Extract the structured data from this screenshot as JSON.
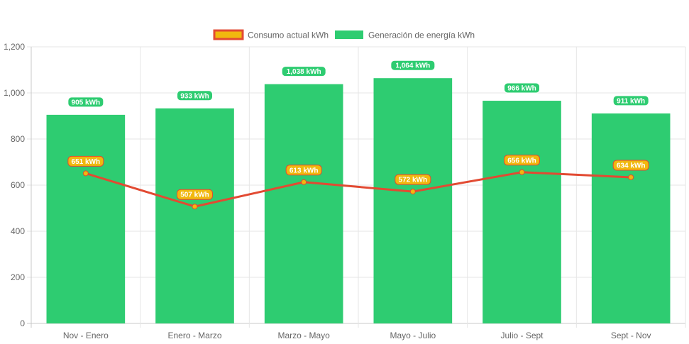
{
  "chart_data": {
    "type": "bar",
    "categories": [
      "Nov - Enero",
      "Enero - Marzo",
      "Marzo - Mayo",
      "Mayo - Julio",
      "Julio - Sept",
      "Sept - Nov"
    ],
    "series": [
      {
        "name": "Consumo actual kWh",
        "type": "line",
        "values": [
          651,
          507,
          613,
          572,
          656,
          634
        ],
        "data_labels": [
          "651 kWh",
          "507 kWh",
          "613 kWh",
          "572 kWh",
          "656 kWh",
          "634 kWh"
        ],
        "color": "#e24a32",
        "label_color": "#f1b80e"
      },
      {
        "name": "Generación de energía kWh",
        "type": "bar",
        "values": [
          905,
          933,
          1038,
          1064,
          966,
          911
        ],
        "data_labels": [
          "905 kWh",
          "933 kWh",
          "1,038 kWh",
          "1,064 kWh",
          "966 kWh",
          "911 kWh"
        ],
        "color": "#2ecc71"
      }
    ],
    "y_ticks": [
      "0",
      "200",
      "400",
      "600",
      "800",
      "1,000",
      "1,200"
    ],
    "ylim": [
      0,
      1200
    ],
    "grid": true,
    "legend": "top-center"
  }
}
